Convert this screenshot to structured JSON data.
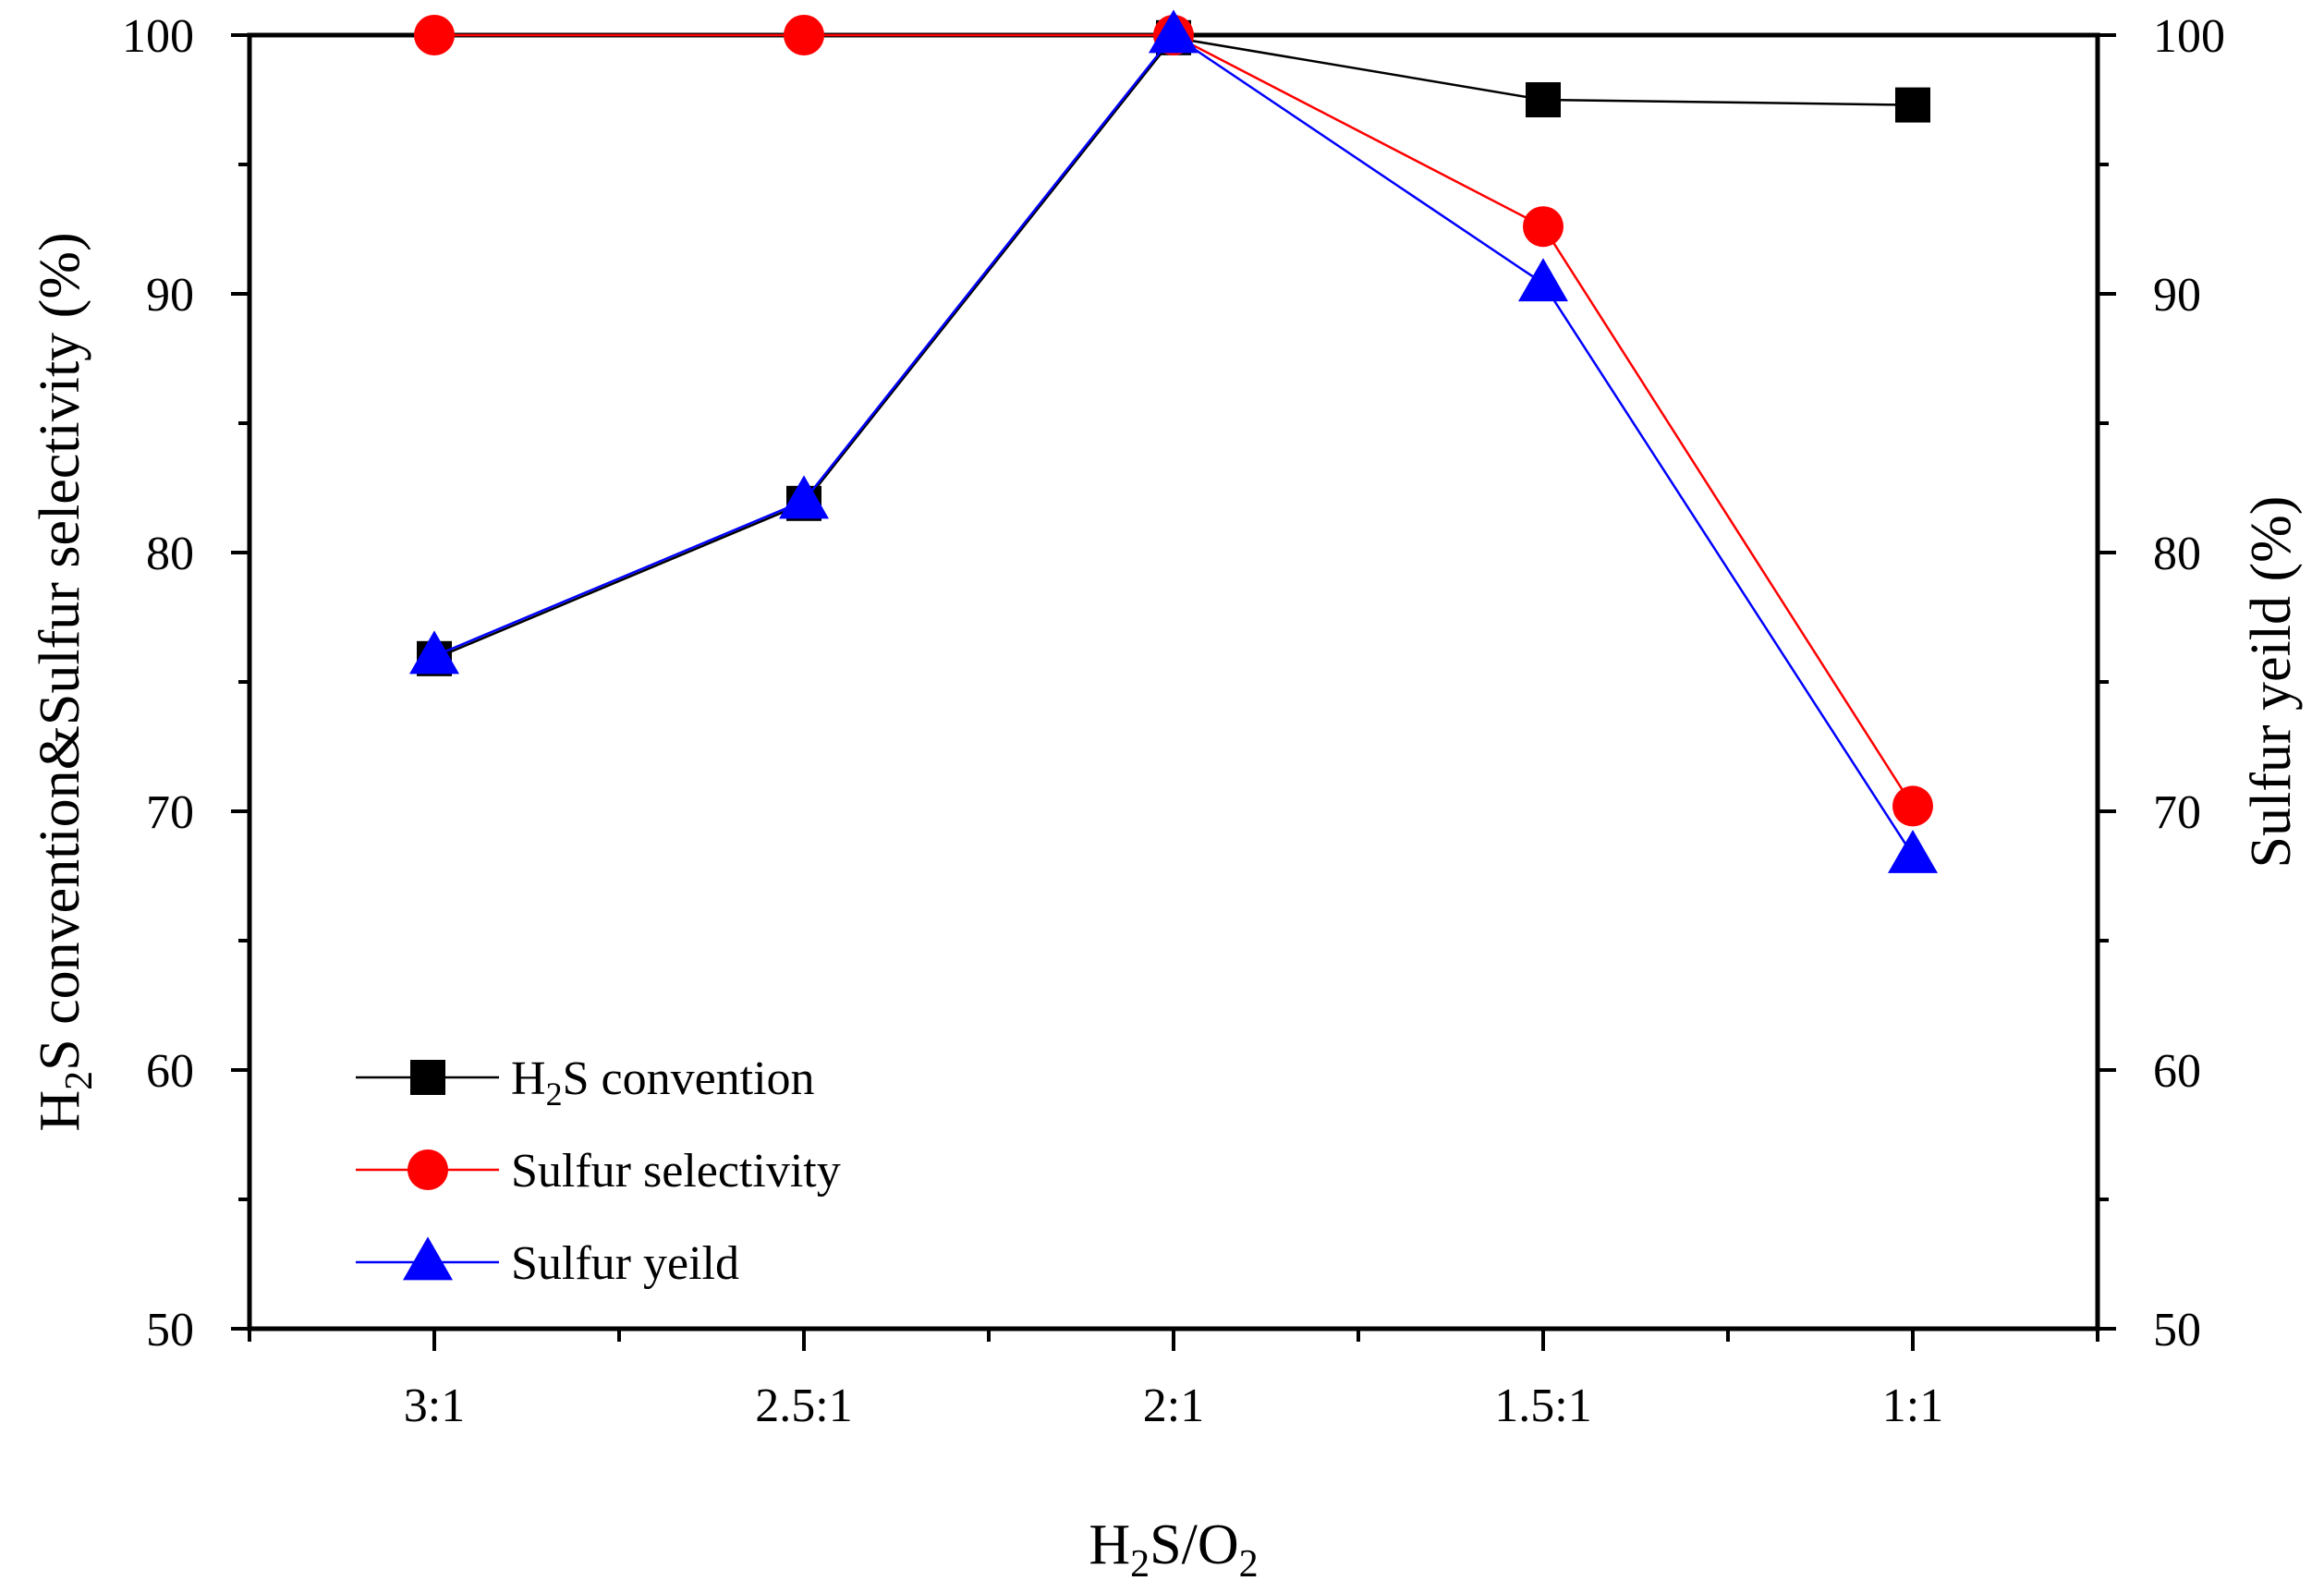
{
  "chart_data": {
    "type": "line",
    "xlabel": {
      "main": "H",
      "sub1": "2",
      "mid": "S/O",
      "sub2": "2"
    },
    "ylabel_left": {
      "pre": "H",
      "sub": "2",
      "post": "S convention&Sulfur selectivity (%)"
    },
    "ylabel_right": "Sulfur yeild (%)",
    "categories": [
      "3:1",
      "2.5:1",
      "2:1",
      "1.5:1",
      "1:1"
    ],
    "ylim": [
      50,
      100
    ],
    "y_ticks": [
      "50",
      "60",
      "70",
      "80",
      "90",
      "100"
    ],
    "series": [
      {
        "name": "H2S convention",
        "legend": {
          "pre": "H",
          "sub": "2",
          "post": "S convention"
        },
        "marker": "square",
        "color": "#000000",
        "axis": "left",
        "values": [
          75.9,
          81.9,
          99.9,
          97.5,
          97.3
        ]
      },
      {
        "name": "Sulfur selectivity",
        "legend": {
          "pre": "Sulfur selectivity",
          "sub": "",
          "post": ""
        },
        "marker": "circle",
        "color": "#ff0000",
        "axis": "left",
        "values": [
          100,
          100,
          100,
          92.6,
          70.2
        ]
      },
      {
        "name": "Sulfur yeild",
        "legend": {
          "pre": "Sulfur yeild",
          "sub": "",
          "post": ""
        },
        "marker": "triangle",
        "color": "#0000ff",
        "axis": "right",
        "values": [
          76.0,
          82.0,
          100.0,
          90.4,
          68.3
        ]
      }
    ],
    "legend_position": "bottom-left"
  }
}
